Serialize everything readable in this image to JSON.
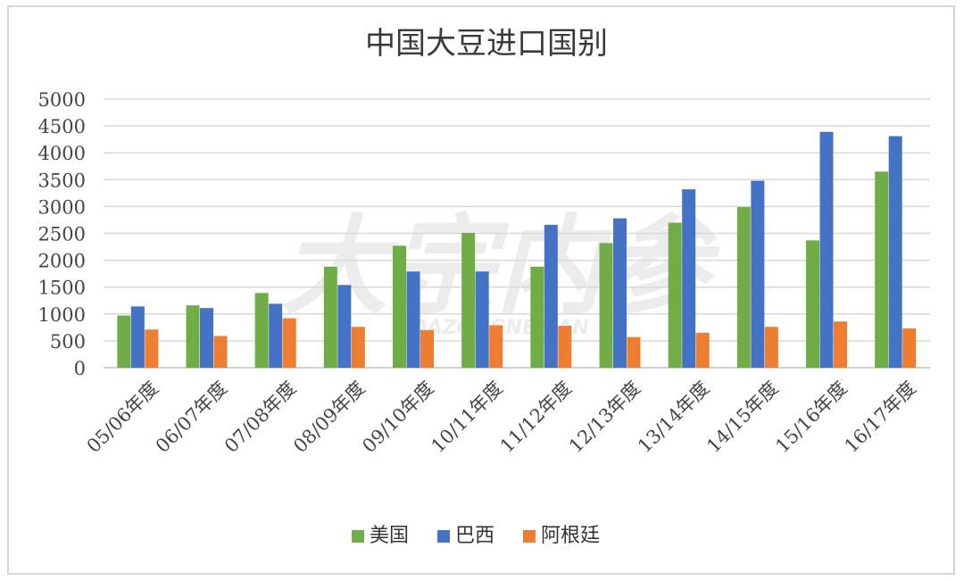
{
  "chart_data": {
    "type": "bar",
    "title": "中国大豆进口国别",
    "categories": [
      "05/06年度",
      "06/07年度",
      "07/08年度",
      "08/09年度",
      "09/10年度",
      "10/11年度",
      "11/12年度",
      "12/13年度",
      "13/14年度",
      "14/15年度",
      "15/16年度",
      "16/17年度"
    ],
    "series": [
      {
        "name": "美国",
        "color": "#70ad47",
        "values": [
          970,
          1160,
          1390,
          1880,
          2270,
          2510,
          1880,
          2320,
          2700,
          2990,
          2370,
          3650
        ]
      },
      {
        "name": "巴西",
        "color": "#4472c4",
        "values": [
          1140,
          1110,
          1190,
          1540,
          1790,
          1790,
          2660,
          2780,
          3320,
          3480,
          4390,
          4310
        ]
      },
      {
        "name": "阿根廷",
        "color": "#ed7d31",
        "values": [
          710,
          590,
          920,
          760,
          700,
          790,
          780,
          570,
          650,
          760,
          860,
          730
        ]
      }
    ],
    "yticks": [
      "0",
      "500",
      "1000",
      "1500",
      "2000",
      "2500",
      "3000",
      "3500",
      "4000",
      "4500",
      "5000"
    ],
    "ylim": [
      0,
      5000
    ],
    "grid": true,
    "legend_position": "bottom"
  },
  "watermark": {
    "main": "大宗内参",
    "sub": "DAZONGNEICAN"
  }
}
